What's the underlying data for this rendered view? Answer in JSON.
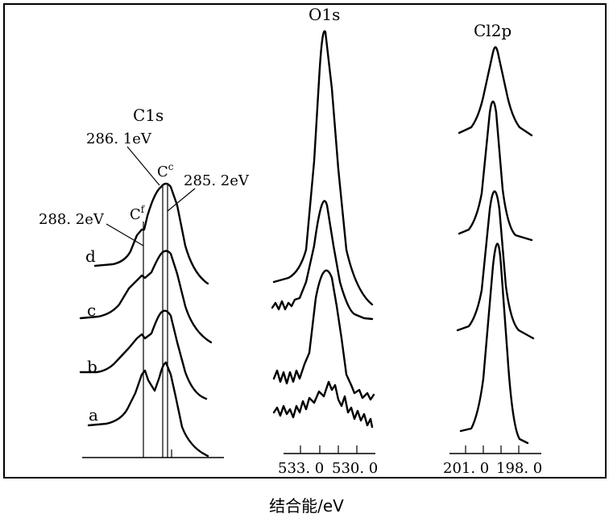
{
  "chart_data": {
    "type": "line",
    "xlabel": "结合能/eV",
    "panels": [
      {
        "title": "C1s",
        "spectra_labels": [
          "a",
          "b",
          "c",
          "d"
        ],
        "annotations": [
          "288. 2eV",
          "286. 1eV",
          "285. 2eV"
        ],
        "peak_labels": [
          {
            "main": "C",
            "sup": "f"
          },
          {
            "main": "C",
            "sup": "c"
          }
        ]
      },
      {
        "title": "O1s",
        "xticks": [
          "533. 0",
          "530. 0"
        ]
      },
      {
        "title": "Cl2p",
        "xticks": [
          "201. 0",
          "198. 0"
        ]
      }
    ]
  }
}
